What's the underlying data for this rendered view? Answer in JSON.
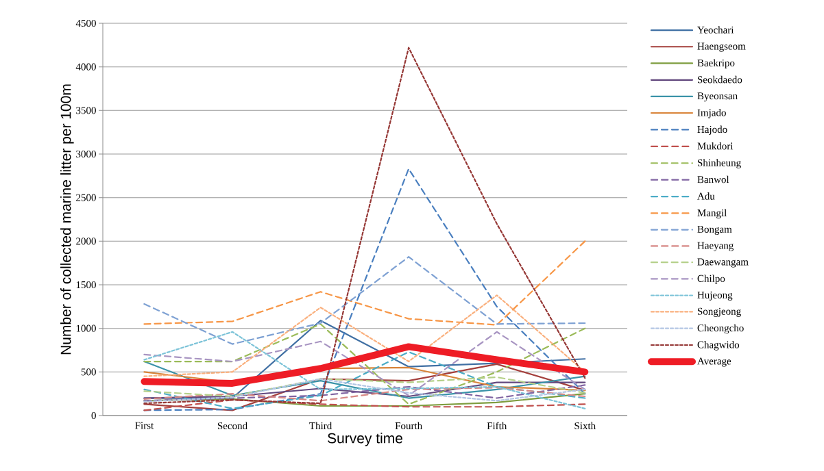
{
  "chart_data": {
    "type": "line",
    "xlabel": "Survey time",
    "ylabel": "Number of collected marine litter per 100m",
    "categories": [
      "First",
      "Second",
      "Third",
      "Fourth",
      "Fifth",
      "Sixth"
    ],
    "ylim": [
      0,
      4500
    ],
    "yticks": [
      0,
      500,
      1000,
      1500,
      2000,
      2500,
      3000,
      3500,
      4000,
      4500
    ],
    "grid": "y",
    "legend": "right",
    "series": [
      {
        "name": "Yeochari",
        "color": "#3f6fa3",
        "line_style": "solid",
        "values": [
          200,
          200,
          1090,
          560,
          600,
          650
        ]
      },
      {
        "name": "Haengseom",
        "color": "#a4403d",
        "line_style": "solid",
        "values": [
          130,
          60,
          420,
          400,
          590,
          290
        ]
      },
      {
        "name": "Baekripo",
        "color": "#7e9d3f",
        "line_style": "solid",
        "values": [
          170,
          190,
          110,
          110,
          150,
          250
        ]
      },
      {
        "name": "Seokdaedo",
        "color": "#62487e",
        "line_style": "solid",
        "values": [
          200,
          220,
          310,
          220,
          380,
          380
        ]
      },
      {
        "name": "Byeonsan",
        "color": "#3a93a8",
        "line_style": "solid",
        "values": [
          620,
          230,
          400,
          200,
          300,
          450
        ]
      },
      {
        "name": "Imjado",
        "color": "#d9843a",
        "line_style": "solid",
        "values": [
          500,
          380,
          540,
          550,
          330,
          290
        ]
      },
      {
        "name": "Hajodo",
        "color": "#4a7fbf",
        "line_style": "dashed",
        "values": [
          60,
          70,
          250,
          2830,
          1250,
          250
        ]
      },
      {
        "name": "Mukdori",
        "color": "#c0504d",
        "line_style": "dashed",
        "values": [
          60,
          180,
          130,
          100,
          100,
          130
        ]
      },
      {
        "name": "Shinheung",
        "color": "#9bbb59",
        "line_style": "dashed",
        "values": [
          620,
          620,
          1050,
          130,
          500,
          1000
        ]
      },
      {
        "name": "Banwol",
        "color": "#8064a2",
        "line_style": "dashed",
        "values": [
          170,
          200,
          230,
          330,
          200,
          350
        ]
      },
      {
        "name": "Adu",
        "color": "#4bacc6",
        "line_style": "dashed",
        "values": [
          300,
          80,
          230,
          730,
          330,
          200
        ]
      },
      {
        "name": "Mangil",
        "color": "#f79646",
        "line_style": "dashed",
        "values": [
          1050,
          1080,
          1420,
          1110,
          1040,
          2000
        ]
      },
      {
        "name": "Bongam",
        "color": "#7ea1d3",
        "line_style": "dashed",
        "values": [
          1280,
          820,
          1060,
          1820,
          1050,
          1060
        ]
      },
      {
        "name": "Haeyang",
        "color": "#d68784",
        "line_style": "dashed",
        "values": [
          190,
          250,
          170,
          300,
          320,
          220
        ]
      },
      {
        "name": "Daewangam",
        "color": "#b5d08a",
        "line_style": "dashed",
        "values": [
          280,
          220,
          420,
          380,
          440,
          260
        ]
      },
      {
        "name": "Chilpo",
        "color": "#a895c2",
        "line_style": "dashed",
        "values": [
          700,
          620,
          850,
          230,
          960,
          300
        ]
      },
      {
        "name": "Hujeong",
        "color": "#7cc3d8",
        "line_style": "dotted",
        "values": [
          640,
          960,
          300,
          310,
          330,
          80
        ]
      },
      {
        "name": "Songjeong",
        "color": "#fab07e",
        "line_style": "dotted",
        "values": [
          450,
          500,
          1240,
          620,
          1380,
          500
        ]
      },
      {
        "name": "Cheongcho",
        "color": "#b3c6e4",
        "line_style": "dotted",
        "values": [
          160,
          210,
          420,
          260,
          170,
          300
        ]
      },
      {
        "name": "Chagwido",
        "color": "#953735",
        "line_style": "dotted",
        "values": [
          140,
          180,
          140,
          4220,
          2200,
          430
        ]
      },
      {
        "name": "Average",
        "color": "#ee1c25",
        "line_style": "solid",
        "values": [
          390,
          370,
          540,
          790,
          640,
          500
        ]
      }
    ]
  }
}
